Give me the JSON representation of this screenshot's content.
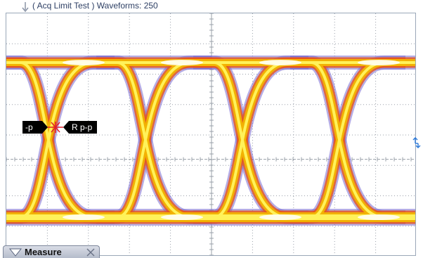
{
  "status": {
    "text": "( Acq Limit Test )  Waveforms: 250"
  },
  "markers": {
    "left_label": "-p",
    "right_label": "R p-p"
  },
  "measure_panel": {
    "label": "Measure"
  },
  "icons": {
    "trigger": "trigger-arrow-icon",
    "cursor": "cursor-cross-icon",
    "scroll": "scroll-arrow-icon",
    "collapse": "triangle-down-icon",
    "close": "close-icon"
  },
  "colors": {
    "grid": "#9aa0aa",
    "eye_core": "#fff25a",
    "eye_mid": "#f2b400",
    "eye_edge": "#e8551a",
    "eye_outer": "#7a6ad0",
    "marker_bg": "#000000",
    "cursor": "#e0202a",
    "accent": "#2a78d8"
  }
}
